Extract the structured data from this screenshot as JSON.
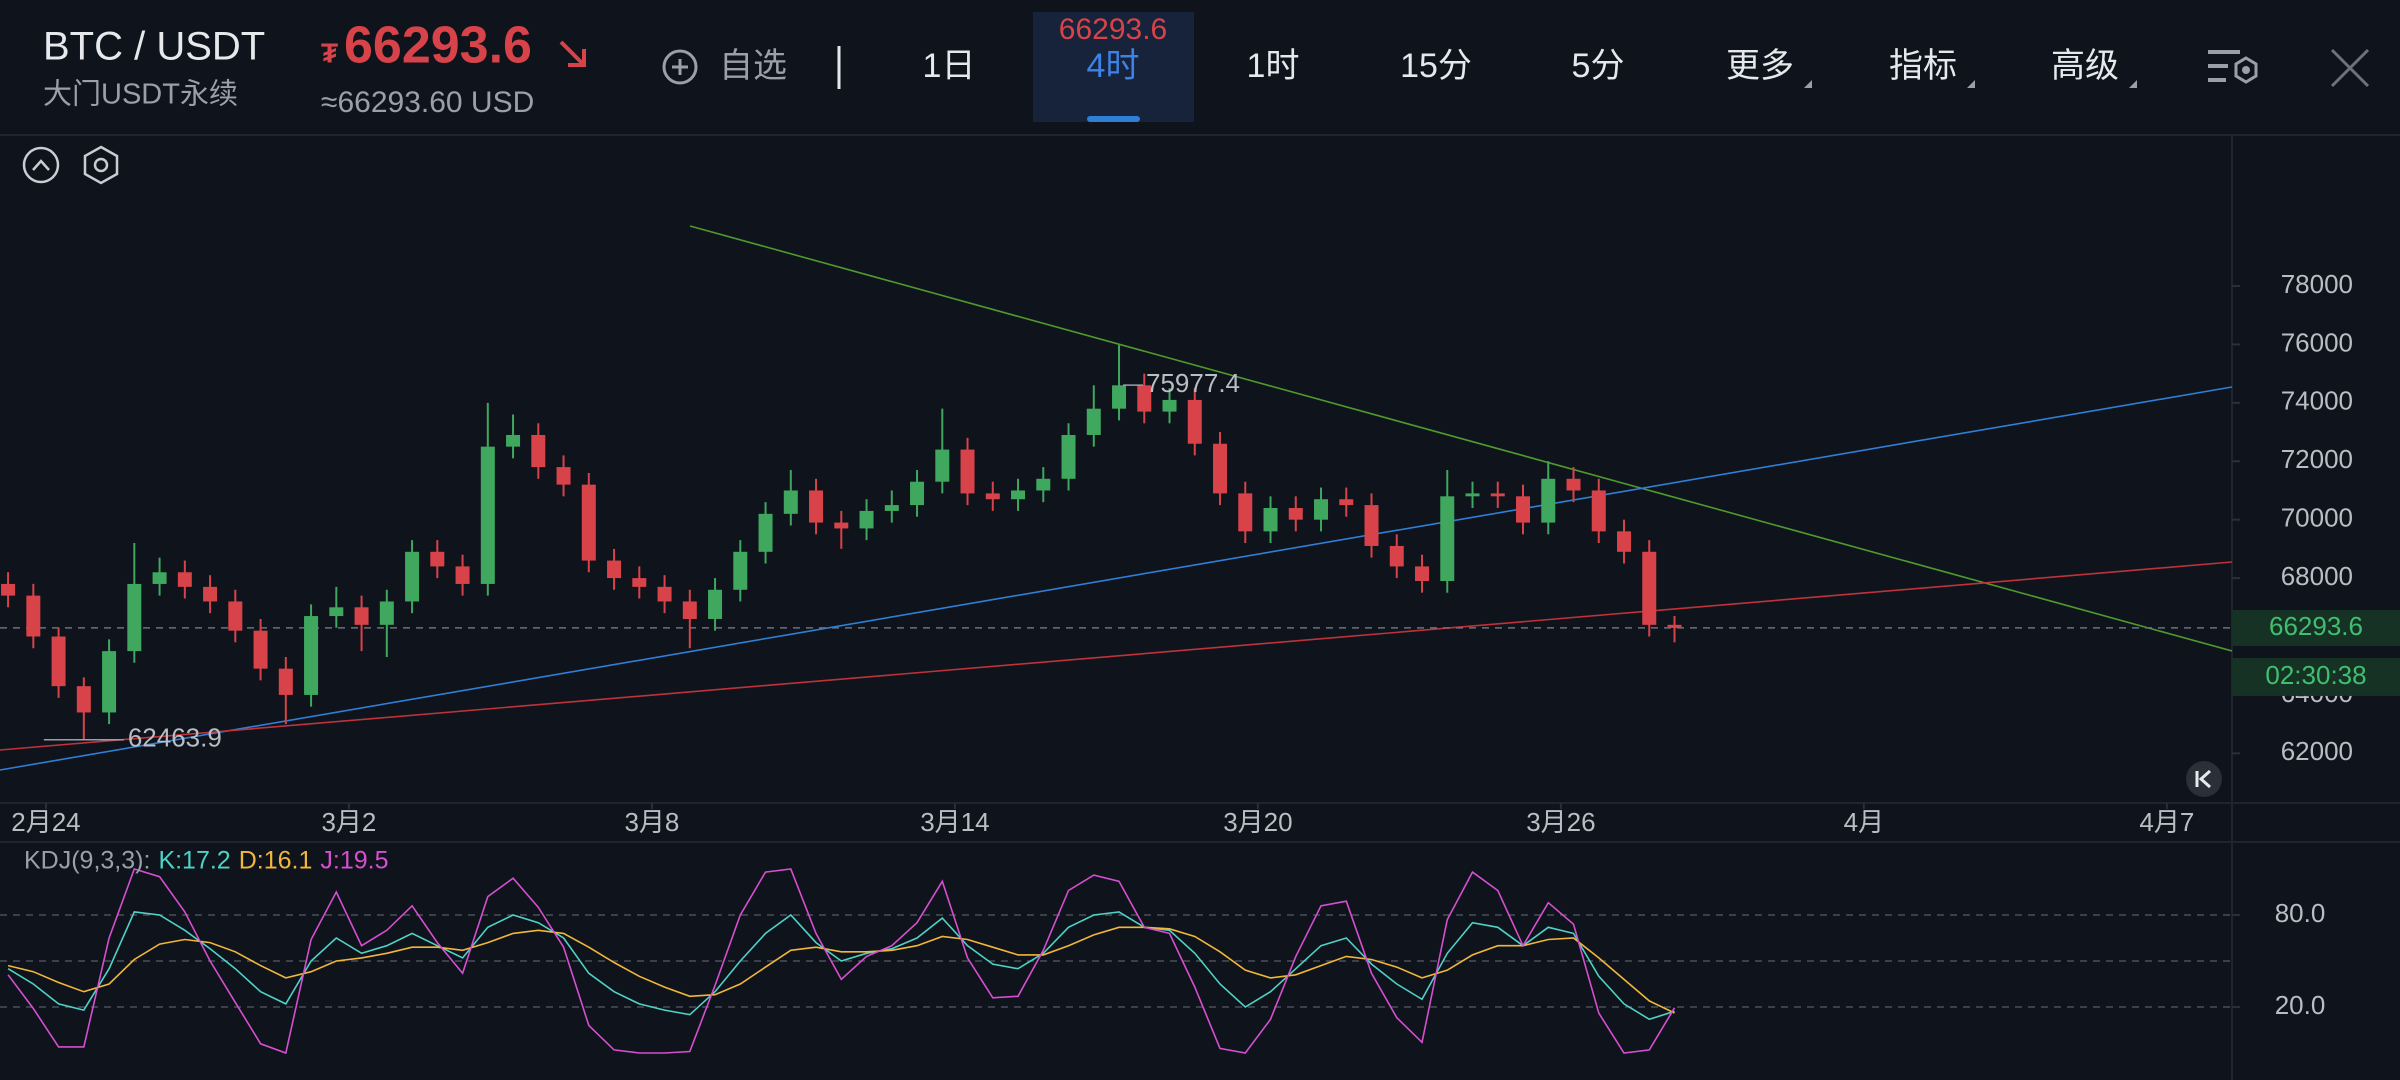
{
  "header": {
    "symbol": "BTC / USDT",
    "market": "大门USDT永续",
    "currency_sign": "₮",
    "approx": "≈66293.60 USD",
    "watch": "自选",
    "tabs": [
      "1日",
      "4时",
      "1时",
      "15分",
      "5分",
      "更多",
      "指标",
      "高级"
    ],
    "selected_tab": 1
  },
  "chart_data": [
    {
      "type": "candlestick",
      "up_color": "#3fa85e",
      "down_color": "#d8434a",
      "last_price": 66293.6,
      "countdown": "02:30:38",
      "x": [
        -0.75,
        -0.25,
        0.25,
        0.75,
        1.25,
        1.75,
        2.25,
        2.75,
        3.25,
        3.75,
        4.25,
        4.75,
        5.25,
        5.75,
        6.25,
        6.75,
        7.25,
        7.75,
        8.25,
        8.75,
        9.25,
        9.75,
        10.25,
        10.75,
        11.25,
        11.75,
        12.25,
        12.75,
        13.25,
        13.75,
        14.25,
        14.75,
        15.25,
        15.75,
        16.25,
        16.75,
        17.25,
        17.75,
        18.25,
        18.75,
        19.25,
        19.75,
        20.25,
        20.75,
        21.25,
        21.75,
        22.25,
        22.75,
        23.25,
        23.75,
        24.25,
        24.75,
        25.25,
        25.75,
        26.25,
        26.75,
        27.25,
        27.75,
        28.25,
        28.75,
        29.25,
        29.75,
        30.25,
        30.75,
        31.25,
        31.75,
        32.25
      ],
      "ohlc": [
        [
          67800,
          68200,
          67000,
          67400
        ],
        [
          67400,
          67800,
          65600,
          66000
        ],
        [
          66000,
          66300,
          63900,
          64300
        ],
        [
          64300,
          64600,
          62463.9,
          63400
        ],
        [
          63400,
          65900,
          63000,
          65500
        ],
        [
          65500,
          69200,
          65100,
          67800
        ],
        [
          67800,
          68700,
          67400,
          68200
        ],
        [
          68200,
          68600,
          67300,
          67700
        ],
        [
          67700,
          68100,
          66800,
          67200
        ],
        [
          67200,
          67600,
          65800,
          66200
        ],
        [
          66200,
          66600,
          64500,
          64900
        ],
        [
          64900,
          65300,
          63000,
          64000
        ],
        [
          64000,
          67100,
          63600,
          66700
        ],
        [
          66700,
          67700,
          66300,
          67000
        ],
        [
          67000,
          67400,
          65500,
          66400
        ],
        [
          66400,
          67600,
          65300,
          67200
        ],
        [
          67200,
          69300,
          66800,
          68900
        ],
        [
          68900,
          69300,
          68000,
          68400
        ],
        [
          68400,
          68800,
          67400,
          67800
        ],
        [
          67800,
          74000,
          67400,
          72500
        ],
        [
          72500,
          73600,
          72100,
          72900
        ],
        [
          72900,
          73300,
          71400,
          71800
        ],
        [
          71800,
          72200,
          70800,
          71200
        ],
        [
          71200,
          71600,
          68200,
          68600
        ],
        [
          68600,
          69000,
          67600,
          68000
        ],
        [
          68000,
          68400,
          67300,
          67700
        ],
        [
          67700,
          68100,
          66800,
          67200
        ],
        [
          67200,
          67600,
          65600,
          66600
        ],
        [
          66600,
          68000,
          66200,
          67600
        ],
        [
          67600,
          69300,
          67200,
          68900
        ],
        [
          68900,
          70600,
          68500,
          70200
        ],
        [
          70200,
          71700,
          69800,
          71000
        ],
        [
          71000,
          71400,
          69500,
          69900
        ],
        [
          69900,
          70300,
          69000,
          69700
        ],
        [
          69700,
          70700,
          69300,
          70300
        ],
        [
          70300,
          71000,
          69900,
          70500
        ],
        [
          70500,
          71700,
          70100,
          71300
        ],
        [
          71300,
          73800,
          70900,
          72400
        ],
        [
          72400,
          72800,
          70500,
          70900
        ],
        [
          70900,
          71300,
          70300,
          70700
        ],
        [
          70700,
          71400,
          70300,
          71000
        ],
        [
          71000,
          71800,
          70600,
          71400
        ],
        [
          71400,
          73300,
          71000,
          72900
        ],
        [
          72900,
          74600,
          72500,
          73800
        ],
        [
          73800,
          75977.4,
          73400,
          74600
        ],
        [
          74600,
          75000,
          73300,
          73700
        ],
        [
          73700,
          74500,
          73300,
          74100
        ],
        [
          74100,
          74500,
          72200,
          72600
        ],
        [
          72600,
          73000,
          70500,
          70900
        ],
        [
          70900,
          71300,
          69200,
          69600
        ],
        [
          69600,
          70800,
          69200,
          70400
        ],
        [
          70400,
          70800,
          69600,
          70000
        ],
        [
          70000,
          71100,
          69600,
          70700
        ],
        [
          70700,
          71100,
          70100,
          70500
        ],
        [
          70500,
          70900,
          68700,
          69100
        ],
        [
          69100,
          69500,
          68000,
          68400
        ],
        [
          68400,
          68800,
          67500,
          67900
        ],
        [
          67900,
          71700,
          67500,
          70800
        ],
        [
          70800,
          71300,
          70400,
          70900
        ],
        [
          70900,
          71300,
          70400,
          70800
        ],
        [
          70800,
          71200,
          69500,
          69900
        ],
        [
          69900,
          72000,
          69500,
          71400
        ],
        [
          71400,
          71800,
          70600,
          71000
        ],
        [
          71000,
          71400,
          69200,
          69600
        ],
        [
          69600,
          70000,
          68500,
          68900
        ],
        [
          68900,
          69300,
          66000,
          66400
        ],
        [
          66400,
          66700,
          65800,
          66293.6
        ]
      ],
      "xlim": [
        -0.91,
        43.29
      ],
      "xticks": [
        {
          "value": 0,
          "label": "2月24"
        },
        {
          "value": 6,
          "label": "3月2"
        },
        {
          "value": 12,
          "label": "3月8"
        },
        {
          "value": 18,
          "label": "3月14"
        },
        {
          "value": 24,
          "label": "3月20"
        },
        {
          "value": 30,
          "label": "3月26"
        },
        {
          "value": 36,
          "label": "4月"
        },
        {
          "value": 42,
          "label": "4月7"
        }
      ],
      "ylim": [
        60300,
        83170
      ],
      "yticks": [
        62000,
        64000,
        66000,
        68000,
        70000,
        72000,
        74000,
        76000,
        78000
      ]
    },
    {
      "type": "line",
      "title": "KDJ(9,3,3):",
      "series": [
        {
          "value_label": "K:17.2",
          "color": "#4fd1c5",
          "values": [
            45,
            35,
            22,
            18,
            45,
            82,
            80,
            70,
            58,
            45,
            30,
            22,
            50,
            65,
            55,
            60,
            68,
            60,
            52,
            72,
            80,
            75,
            65,
            42,
            30,
            22,
            18,
            15,
            30,
            50,
            68,
            80,
            62,
            50,
            55,
            58,
            65,
            78,
            60,
            48,
            45,
            55,
            72,
            80,
            82,
            72,
            70,
            55,
            35,
            20,
            30,
            45,
            60,
            65,
            48,
            35,
            25,
            55,
            75,
            72,
            60,
            72,
            68,
            40,
            22,
            12,
            17.2
          ]
        },
        {
          "value_label": "D:16.1",
          "color": "#f0b73a",
          "values": [
            47,
            43,
            36,
            30,
            35,
            51,
            61,
            64,
            62,
            56,
            47,
            39,
            43,
            50,
            52,
            55,
            59,
            59,
            57,
            62,
            68,
            70,
            68,
            59,
            49,
            40,
            33,
            27,
            28,
            35,
            46,
            57,
            59,
            56,
            56,
            57,
            60,
            66,
            64,
            59,
            54,
            54,
            60,
            67,
            72,
            72,
            71,
            66,
            56,
            44,
            39,
            41,
            47,
            53,
            51,
            46,
            39,
            44,
            54,
            60,
            60,
            64,
            65,
            52,
            38,
            24,
            16.1
          ]
        },
        {
          "value_label": "J:19.5",
          "color": "#d64fd0",
          "values": [
            41,
            19,
            -6,
            -6,
            65,
            110,
            105,
            82,
            50,
            23,
            -4,
            -10,
            64,
            95,
            60,
            70,
            86,
            62,
            42,
            92,
            104,
            85,
            59,
            8,
            -8,
            -10,
            -10,
            -9,
            34,
            80,
            108,
            110,
            68,
            38,
            53,
            60,
            75,
            102,
            52,
            26,
            27,
            57,
            96,
            106,
            102,
            72,
            68,
            33,
            -7,
            -10,
            12,
            53,
            86,
            89,
            42,
            13,
            -3,
            77,
            108,
            96,
            60,
            88,
            74,
            16,
            -10,
            -8,
            19.5
          ]
        }
      ],
      "ylim": [
        -25,
        125
      ],
      "yticks": [
        {
          "value": 80,
          "label": "80.0"
        },
        {
          "value": 20,
          "label": "20.0"
        }
      ],
      "grid": [
        80,
        50,
        20
      ]
    }
  ]
}
